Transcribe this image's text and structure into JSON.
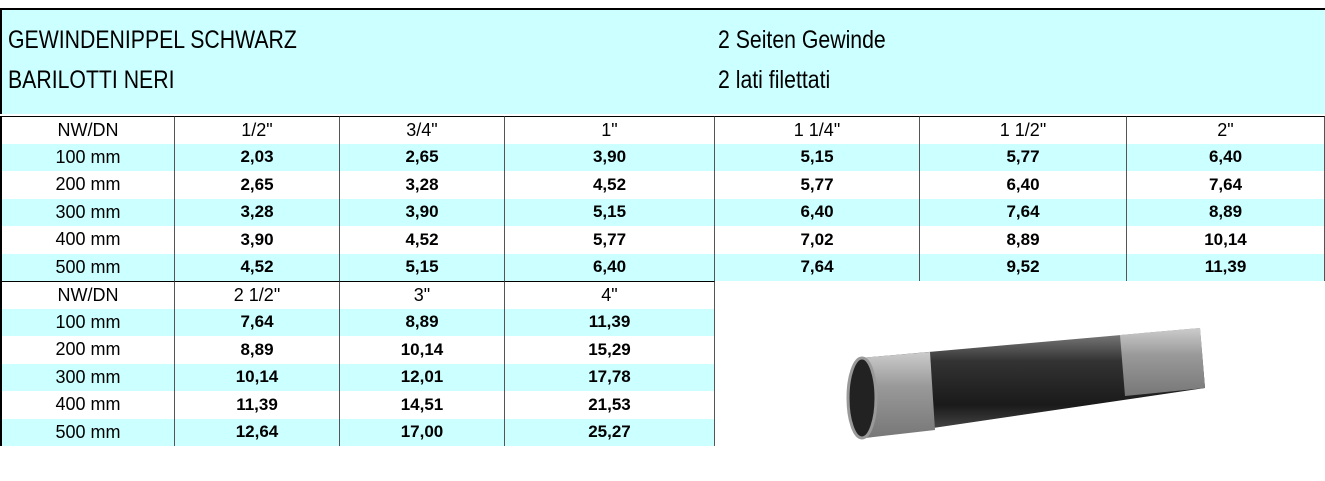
{
  "header": {
    "title_de": "GEWINDENIPPEL SCHWARZ",
    "title_it": "BARILOTTI NERI",
    "subtitle_de": "2 Seiten Gewinde",
    "subtitle_it": "2 lati filettati"
  },
  "tables": [
    {
      "columns": [
        "NW/DN",
        "1/2\"",
        "3/4\"",
        "1\"",
        "1 1/4\"",
        "1 1/2\"",
        "2\""
      ],
      "rows": [
        [
          "100 mm",
          "2,03",
          "2,65",
          "3,90",
          "5,15",
          "5,77",
          "6,40"
        ],
        [
          "200 mm",
          "2,65",
          "3,28",
          "4,52",
          "5,77",
          "6,40",
          "7,64"
        ],
        [
          "300 mm",
          "3,28",
          "3,90",
          "5,15",
          "6,40",
          "7,64",
          "8,89"
        ],
        [
          "400 mm",
          "3,90",
          "4,52",
          "5,77",
          "7,02",
          "8,89",
          "10,14"
        ],
        [
          "500 mm",
          "4,52",
          "5,15",
          "6,40",
          "7,64",
          "9,52",
          "11,39"
        ]
      ]
    },
    {
      "columns": [
        "NW/DN",
        "2 1/2\"",
        "3\"",
        "4\""
      ],
      "rows": [
        [
          "100 mm",
          "7,64",
          "8,89",
          "11,39"
        ],
        [
          "200 mm",
          "8,89",
          "10,14",
          "15,29"
        ],
        [
          "300 mm",
          "10,14",
          "12,01",
          "17,78"
        ],
        [
          "400 mm",
          "11,39",
          "14,51",
          "21,53"
        ],
        [
          "500 mm",
          "12,64",
          "17,00",
          "25,27"
        ]
      ]
    }
  ]
}
